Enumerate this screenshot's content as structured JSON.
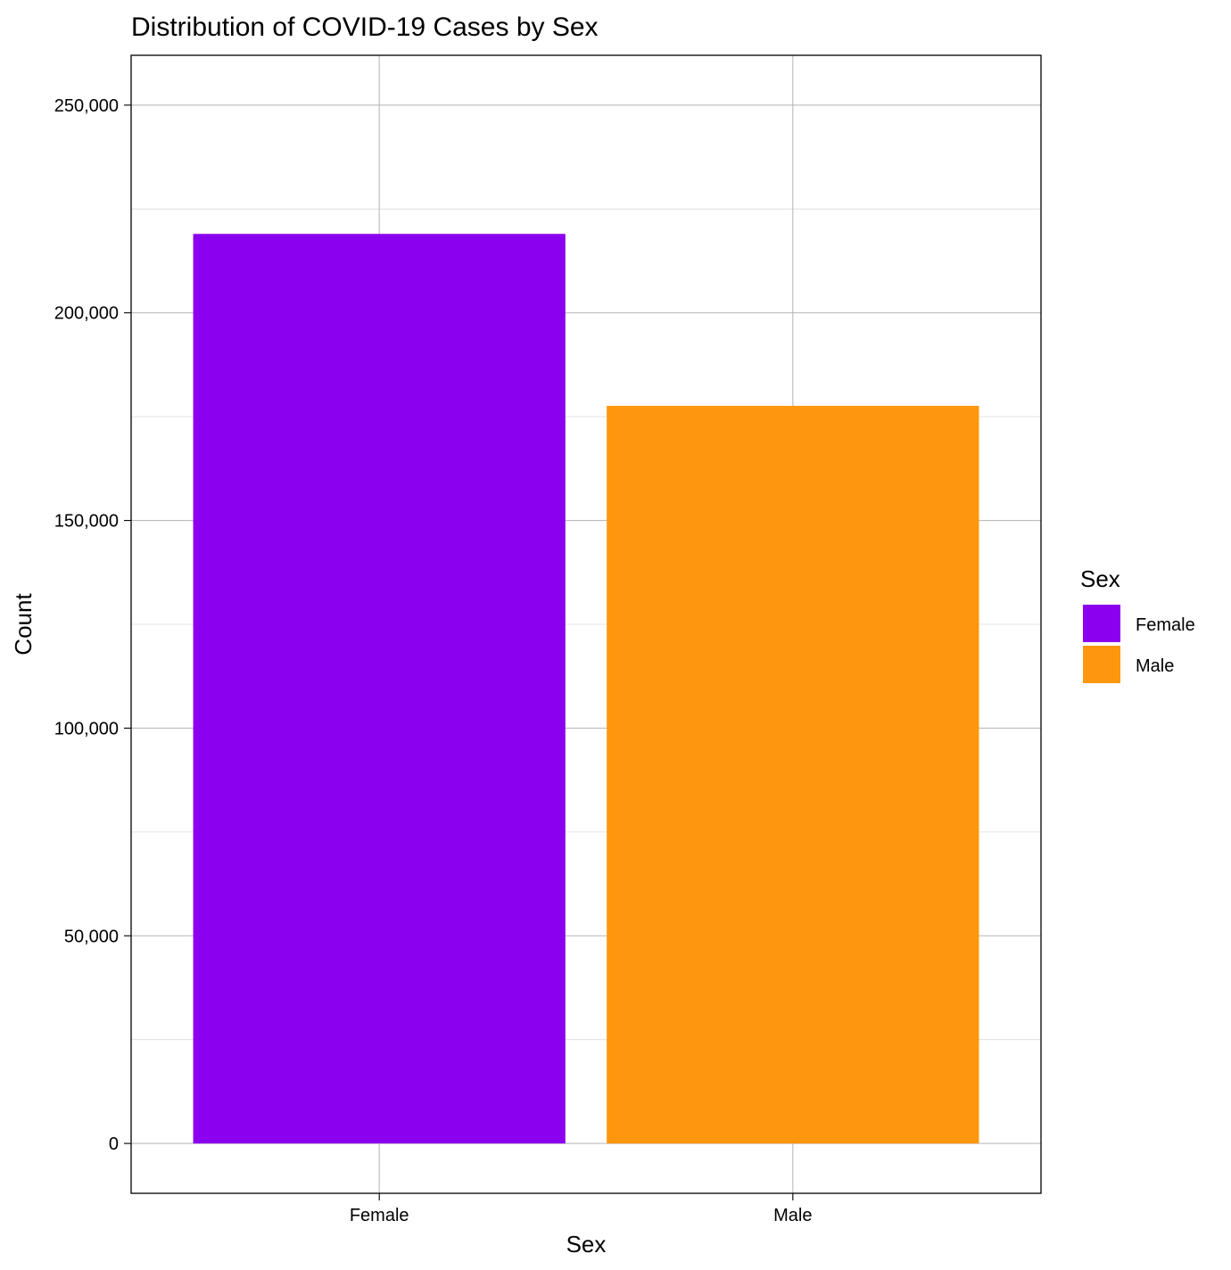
{
  "chart_data": {
    "type": "bar",
    "title": "Distribution of COVID-19 Cases by Sex",
    "xlabel": "Sex",
    "ylabel": "Count",
    "categories": [
      "Female",
      "Male"
    ],
    "values": [
      219000,
      177600
    ],
    "colors": [
      "#8B00EE",
      "#FF960D"
    ],
    "ylim": [
      -12000,
      262000
    ],
    "y_ticks": [
      0,
      50000,
      100000,
      150000,
      200000,
      250000
    ],
    "y_tick_labels": [
      "0",
      "50,000",
      "100,000",
      "150,000",
      "200,000",
      "250,000"
    ],
    "y_minor_ticks": [
      25000,
      75000,
      125000,
      175000,
      225000
    ],
    "grid": true,
    "legend": {
      "title": "Sex",
      "placement": "right",
      "items": [
        {
          "label": "Female",
          "color": "#8B00EE"
        },
        {
          "label": "Male",
          "color": "#FF960D"
        }
      ]
    }
  }
}
